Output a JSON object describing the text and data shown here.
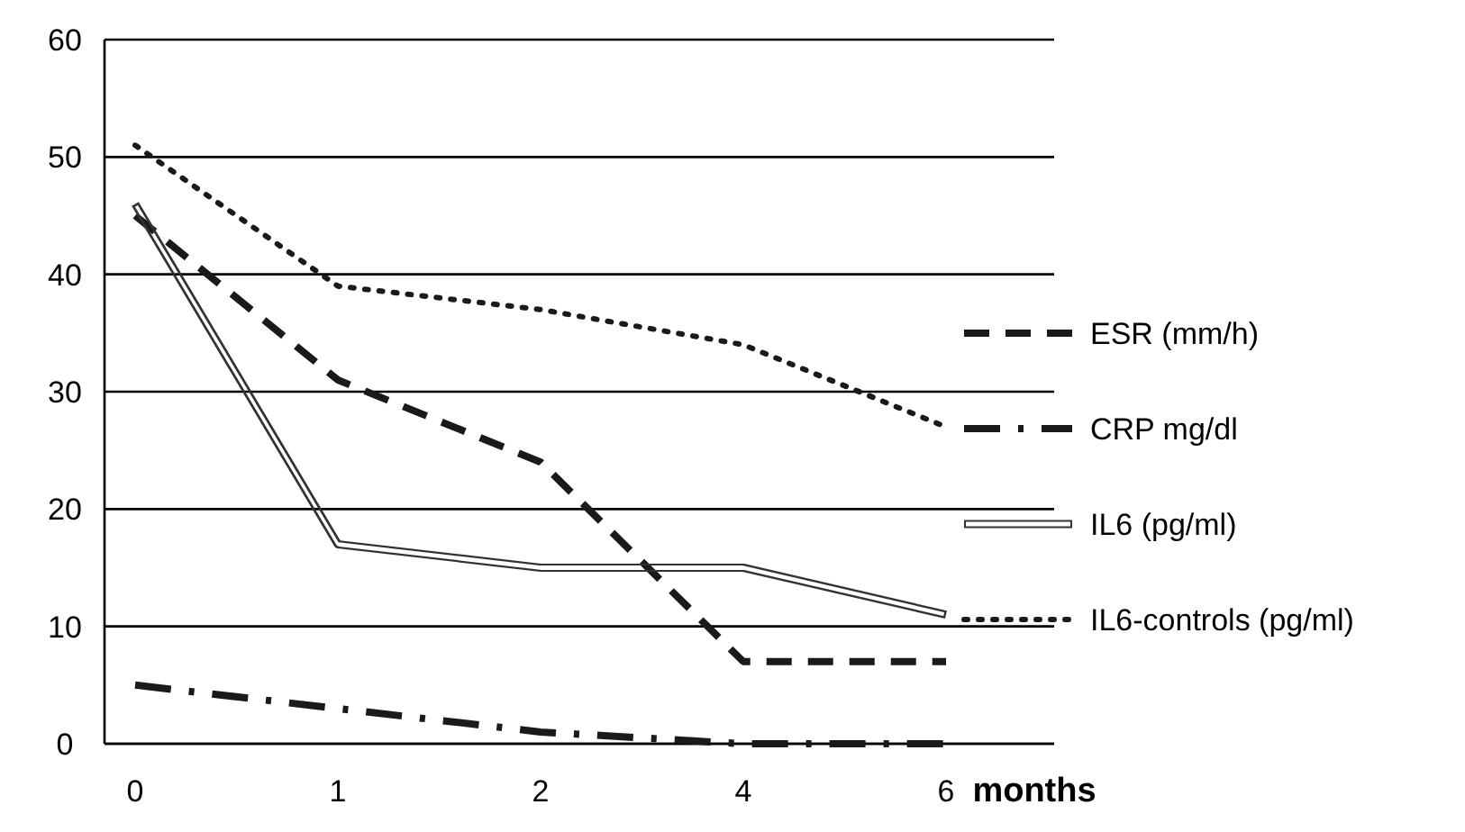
{
  "chart_data": {
    "type": "line",
    "xlabel": "months",
    "categories": [
      "0",
      "1",
      "2",
      "4",
      "6"
    ],
    "ylim": [
      0,
      60
    ],
    "yticks": [
      0,
      10,
      20,
      30,
      40,
      50,
      60
    ],
    "grid": "y",
    "legend": "right",
    "marker": "none",
    "series": [
      {
        "name": "ESR (mm/h)",
        "color": "#1a1a1a",
        "line_style": "dashed",
        "values": [
          45,
          31,
          24,
          7,
          7
        ]
      },
      {
        "name": "CRP mg/dl",
        "color": "#1a1a1a",
        "line_style": "dashdot",
        "values": [
          5,
          3,
          1,
          0,
          0
        ]
      },
      {
        "name": "IL6 (pg/ml)",
        "color": "#333333",
        "line_style": "solid",
        "values": [
          46,
          17,
          15,
          15,
          11
        ]
      },
      {
        "name": "IL6-controls (pg/ml)",
        "color": "#1a1a1a",
        "line_style": "dotted",
        "values": [
          51,
          39,
          37,
          34,
          27
        ]
      }
    ]
  }
}
